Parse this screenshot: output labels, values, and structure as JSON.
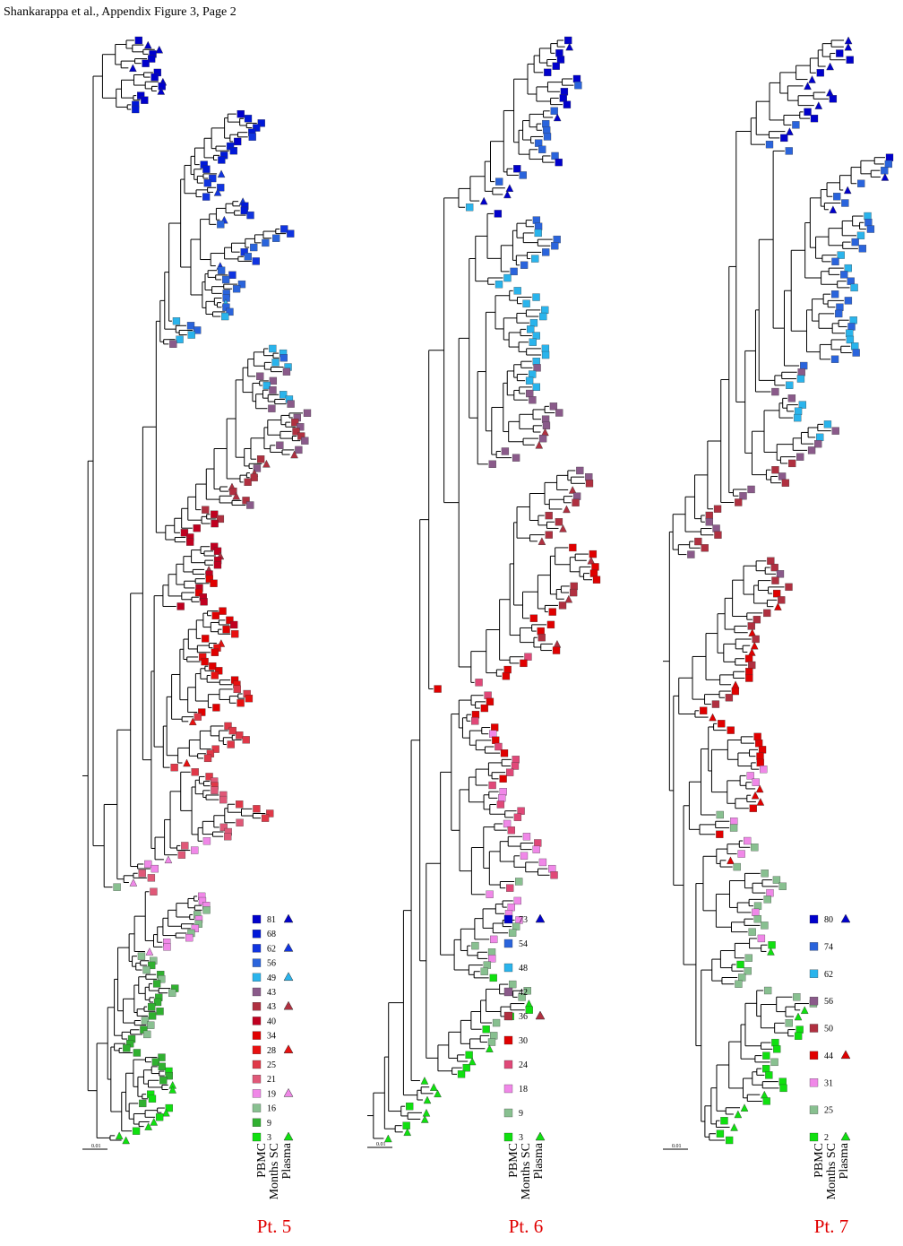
{
  "header": {
    "title": "Shankarappa et al., Appendix Figure 3, Page 2"
  },
  "panels": [
    {
      "label": "Pt. 5",
      "scale": "0.01",
      "legend_headers": [
        "PBMC",
        "Months SC",
        "Plasma"
      ],
      "legend": [
        {
          "months": 81,
          "color": "#0000cc",
          "plasma": true
        },
        {
          "months": 68,
          "color": "#0018d8",
          "plasma": false
        },
        {
          "months": 62,
          "color": "#1034e0",
          "plasma": true
        },
        {
          "months": 56,
          "color": "#2a64dc",
          "plasma": false
        },
        {
          "months": 49,
          "color": "#2ab4ec",
          "plasma": true
        },
        {
          "months": 43,
          "color": "#8a5a8a",
          "plasma": false
        },
        {
          "months": 43,
          "color": "#b03040",
          "plasma": true
        },
        {
          "months": 40,
          "color": "#c00020",
          "plasma": false
        },
        {
          "months": 34,
          "color": "#e00000",
          "plasma": false
        },
        {
          "months": 28,
          "color": "#e81010",
          "plasma": true
        },
        {
          "months": 25,
          "color": "#e03848",
          "plasma": false
        },
        {
          "months": 21,
          "color": "#e05878",
          "plasma": false
        },
        {
          "months": 19,
          "color": "#f088e8",
          "plasma": true
        },
        {
          "months": 16,
          "color": "#88c090",
          "plasma": false
        },
        {
          "months": 9,
          "color": "#30b030",
          "plasma": false
        },
        {
          "months": 3,
          "color": "#10e010",
          "plasma": true
        }
      ]
    },
    {
      "label": "Pt. 6",
      "scale": "0.01",
      "legend_headers": [
        "PBMC",
        "Months SC",
        "Plasma"
      ],
      "legend": [
        {
          "months": 73,
          "color": "#0000cc",
          "plasma": true
        },
        {
          "months": 54,
          "color": "#2a64dc",
          "plasma": false
        },
        {
          "months": 48,
          "color": "#2ab4ec",
          "plasma": false
        },
        {
          "months": 42,
          "color": "#8a5a8a",
          "plasma": false
        },
        {
          "months": 36,
          "color": "#b03040",
          "plasma": true
        },
        {
          "months": 30,
          "color": "#e00000",
          "plasma": false
        },
        {
          "months": 24,
          "color": "#e04878",
          "plasma": false
        },
        {
          "months": 18,
          "color": "#f088e8",
          "plasma": false
        },
        {
          "months": 9,
          "color": "#88c090",
          "plasma": false
        },
        {
          "months": 3,
          "color": "#10e010",
          "plasma": true
        }
      ]
    },
    {
      "label": "Pt. 7",
      "scale": "0.01",
      "legend_headers": [
        "PBMC",
        "Months SC",
        "Plasma"
      ],
      "legend": [
        {
          "months": 80,
          "color": "#0000cc",
          "plasma": true
        },
        {
          "months": 74,
          "color": "#2a64dc",
          "plasma": false
        },
        {
          "months": 62,
          "color": "#2ab4ec",
          "plasma": false
        },
        {
          "months": 56,
          "color": "#8a5a8a",
          "plasma": false
        },
        {
          "months": 50,
          "color": "#b03040",
          "plasma": false
        },
        {
          "months": 44,
          "color": "#e00000",
          "plasma": true
        },
        {
          "months": 31,
          "color": "#f088e8",
          "plasma": false
        },
        {
          "months": 25,
          "color": "#88c090",
          "plasma": false
        },
        {
          "months": 2,
          "color": "#10e010",
          "plasma": true
        }
      ]
    }
  ]
}
